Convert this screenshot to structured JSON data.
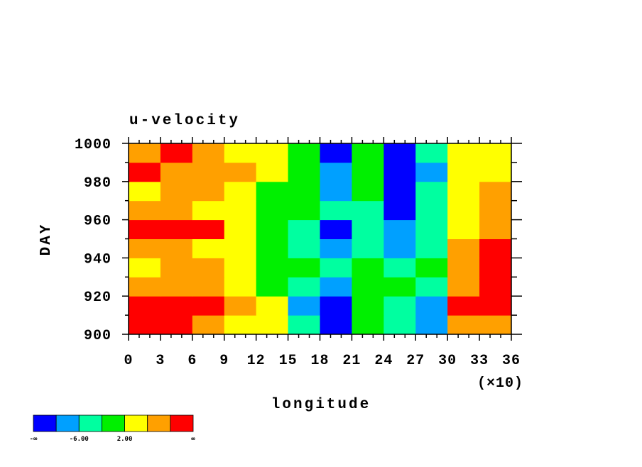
{
  "chart_data": {
    "type": "heatmap",
    "title": "u-velocity",
    "x_label": "longitude",
    "y_label": "DAY",
    "x_multiplier_label": "(×10)",
    "xlim": [
      0,
      36
    ],
    "ylim": [
      900,
      1000
    ],
    "xticks": [
      0,
      3,
      6,
      9,
      12,
      15,
      18,
      21,
      24,
      27,
      30,
      33,
      36
    ],
    "yticks": [
      900,
      920,
      940,
      960,
      980,
      1000
    ],
    "x": [
      1.5,
      4.5,
      7.5,
      10.5,
      13.5,
      16.5,
      19.5,
      22.5,
      25.5,
      28.5,
      31.5,
      34.5
    ],
    "y": [
      905,
      915,
      925,
      935,
      945,
      955,
      965,
      975,
      985,
      995
    ],
    "values": [
      [
        10,
        12,
        8,
        4,
        2,
        -4,
        -12,
        0,
        -4,
        -8,
        6,
        8
      ],
      [
        11,
        12,
        10,
        6,
        2,
        -8,
        -12,
        -2,
        -6,
        -10,
        10,
        12
      ],
      [
        6,
        8,
        6,
        4,
        0,
        -4,
        -10,
        -2,
        0,
        -4,
        8,
        10
      ],
      [
        4,
        6,
        6,
        2,
        0,
        -2,
        -4,
        -2,
        -6,
        -2,
        6,
        12
      ],
      [
        8,
        6,
        4,
        2,
        0,
        -6,
        -8,
        -4,
        -10,
        -6,
        8,
        10
      ],
      [
        12,
        11,
        10,
        4,
        0,
        -4,
        -12,
        -6,
        -10,
        -4,
        4,
        8
      ],
      [
        6,
        8,
        4,
        2,
        -2,
        -2,
        -6,
        -4,
        -12,
        -4,
        2,
        6
      ],
      [
        4,
        6,
        6,
        2,
        0,
        -2,
        -8,
        -2,
        -12,
        -6,
        4,
        6
      ],
      [
        10,
        8,
        8,
        6,
        2,
        -2,
        -8,
        0,
        -12,
        -8,
        2,
        4
      ],
      [
        6,
        10,
        8,
        4,
        4,
        -2,
        -12,
        0,
        -12,
        -4,
        2,
        4
      ]
    ],
    "colorbar": {
      "colors": [
        "#0000ff",
        "#00a0ff",
        "#00ffa0",
        "#00f000",
        "#ffff00",
        "#ffa000",
        "#ff0000"
      ],
      "levels": [
        -10,
        -6,
        -2,
        2,
        6,
        10
      ],
      "low_label": "-∞",
      "high_label": "∞",
      "ticks": [
        {
          "value": -6,
          "label": "-6.00"
        },
        {
          "value": 2,
          "label": "2.00"
        }
      ]
    }
  }
}
